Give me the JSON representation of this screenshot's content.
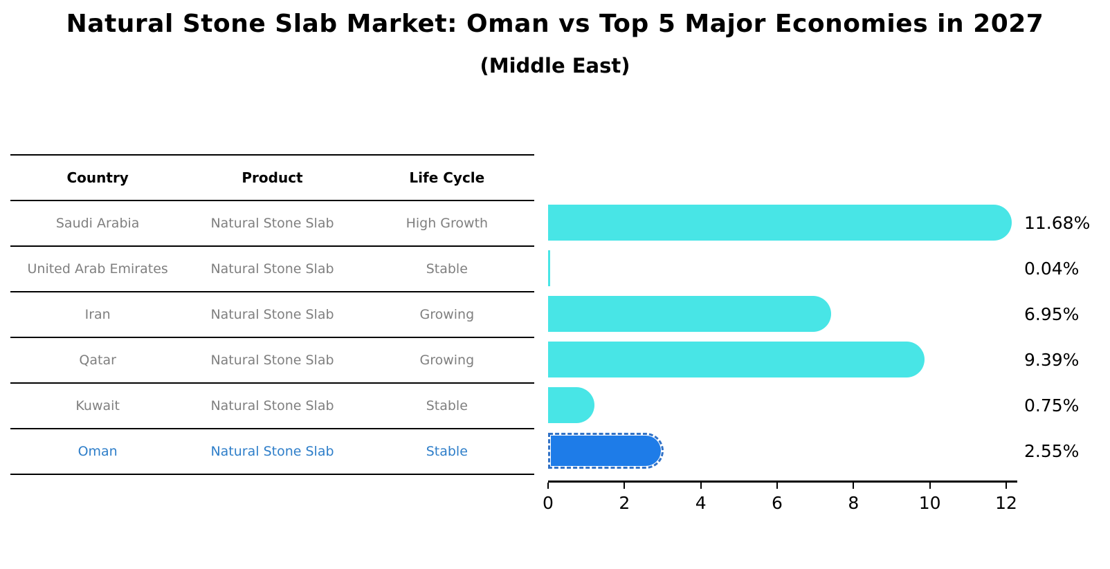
{
  "title": "Natural Stone Slab Market: Oman vs Top 5 Major Economies in 2027",
  "subtitle": "(Middle East)",
  "table": {
    "headers": [
      "Country",
      "Product",
      "Life Cycle"
    ],
    "rows": [
      {
        "country": "Saudi Arabia",
        "product": "Natural Stone Slab",
        "life_cycle": "High Growth",
        "highlighted": false
      },
      {
        "country": "United Arab Emirates",
        "product": "Natural Stone Slab",
        "life_cycle": "Stable",
        "highlighted": false
      },
      {
        "country": "Iran",
        "product": "Natural Stone Slab",
        "life_cycle": "Growing",
        "highlighted": false
      },
      {
        "country": "Qatar",
        "product": "Natural Stone Slab",
        "life_cycle": "Growing",
        "highlighted": false
      },
      {
        "country": "Kuwait",
        "product": "Natural Stone Slab",
        "life_cycle": "Stable",
        "highlighted": false
      },
      {
        "country": "Oman",
        "product": "Natural Stone Slab",
        "life_cycle": "Stable",
        "highlighted": true
      }
    ]
  },
  "chart_data": {
    "type": "bar",
    "orientation": "horizontal",
    "title": "Natural Stone Slab Market: Oman vs Top 5 Major Economies in 2027",
    "subtitle": "(Middle East)",
    "categories": [
      "Saudi Arabia",
      "United Arab Emirates",
      "Iran",
      "Qatar",
      "Kuwait",
      "Oman"
    ],
    "values": [
      11.68,
      0.04,
      6.95,
      9.39,
      0.75,
      2.55
    ],
    "labels": [
      "11.68%",
      "0.04%",
      "6.95%",
      "9.39%",
      "0.75%",
      "2.55%"
    ],
    "highlight_index": 5,
    "xlim": [
      0,
      12
    ],
    "x_ticks": [
      "0",
      "2",
      "4",
      "6",
      "8",
      "10",
      "12"
    ],
    "grid": false,
    "legend": false,
    "bar_color": "#48E5E6",
    "highlight_bar_color": "#1E7CE8"
  },
  "colors": {
    "background": "#FFFFFF",
    "table_text": "#7F7F7F",
    "header_text": "#000000",
    "highlight_text": "#2E7EC9",
    "axis": "#000000"
  }
}
